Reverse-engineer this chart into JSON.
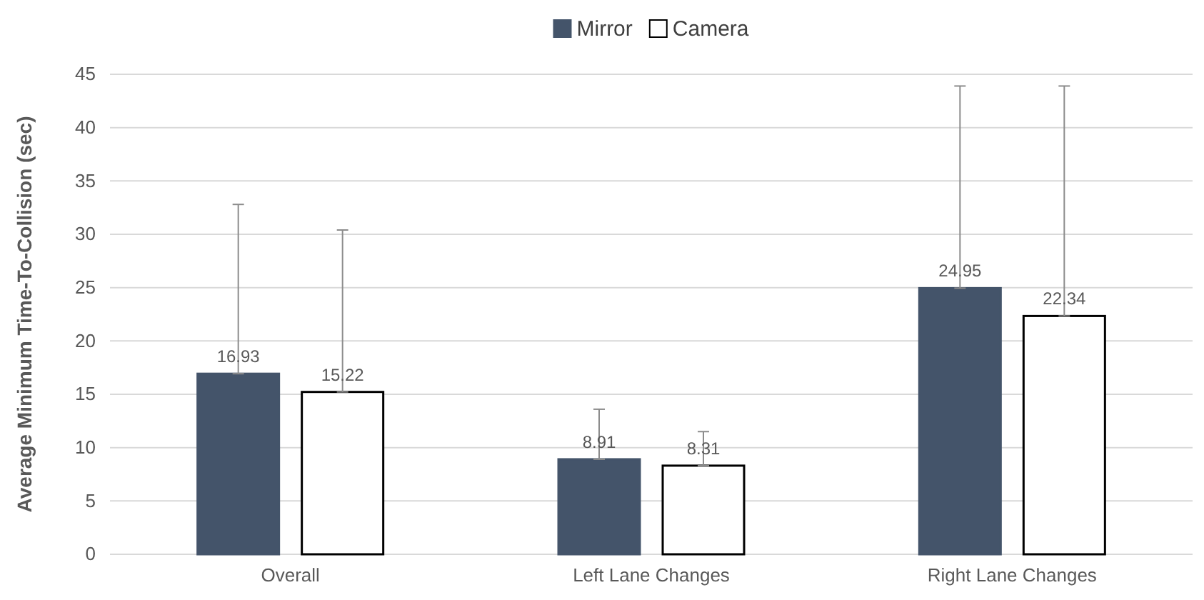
{
  "chart_data": {
    "type": "bar",
    "ylabel": "Average Minimum Time-To-Collision (sec)",
    "categories": [
      "Overall",
      "Left Lane Changes",
      "Right Lane Changes"
    ],
    "series": [
      {
        "name": "Mirror",
        "color": "#44546a",
        "values": [
          16.93,
          8.91,
          24.95
        ],
        "errors": [
          [
            16.93,
            32.8
          ],
          [
            8.91,
            13.6
          ],
          [
            24.95,
            43.9
          ]
        ]
      },
      {
        "name": "Camera",
        "color": "#ffffff",
        "values": [
          15.22,
          8.31,
          22.34
        ],
        "errors": [
          [
            15.22,
            30.4
          ],
          [
            8.31,
            11.5
          ],
          [
            22.34,
            43.9
          ]
        ]
      }
    ],
    "ylim": [
      0,
      45
    ],
    "yticks": [
      0,
      5,
      10,
      15,
      20,
      25,
      30,
      35,
      40,
      45
    ],
    "grid": "y",
    "legend": "top",
    "data_labels": true
  }
}
